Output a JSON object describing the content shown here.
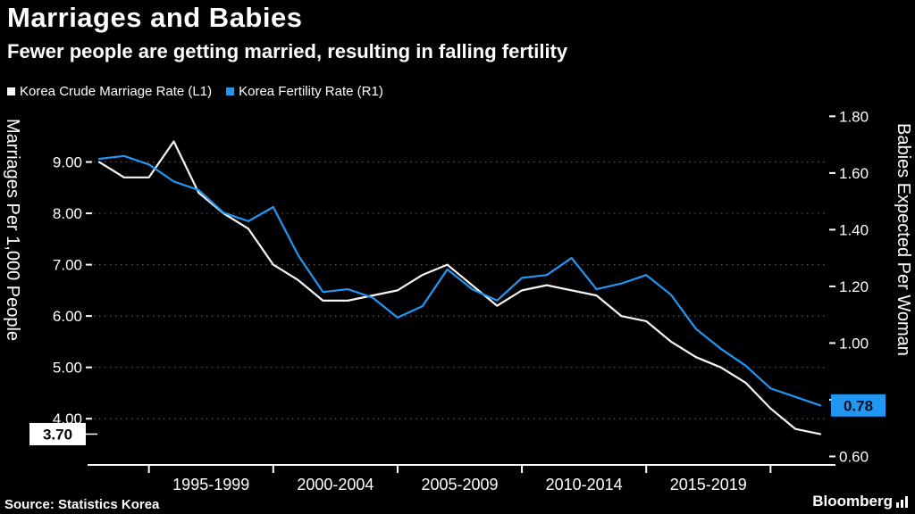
{
  "header": {
    "title": "Marriages and Babies",
    "subtitle": "Fewer people are getting married, resulting in falling fertility"
  },
  "legend": [
    {
      "label": "Korea Crude Marriage Rate (L1)",
      "color": "#f5f5f5"
    },
    {
      "label": "Korea Fertility Rate (R1)",
      "color": "#2196f3"
    }
  ],
  "footer": {
    "source": "Source:  Statistics Korea",
    "brand": "Bloomberg"
  },
  "colors": {
    "background": "#000000",
    "grid": "#5a5a5a",
    "axis": "#ffffff",
    "left_badge_bg": "#ffffff",
    "left_badge_text": "#000000",
    "right_badge_bg": "#2196f3",
    "right_badge_text": "#00101c"
  },
  "chart_data": {
    "type": "line",
    "x_years": [
      1993,
      1994,
      1995,
      1996,
      1997,
      1998,
      1999,
      2000,
      2001,
      2002,
      2003,
      2004,
      2005,
      2006,
      2007,
      2008,
      2009,
      2010,
      2011,
      2012,
      2013,
      2014,
      2015,
      2016,
      2017,
      2018,
      2019,
      2020,
      2021,
      2022
    ],
    "series": [
      {
        "name": "Korea Crude Marriage Rate (L1)",
        "axis": "left",
        "color": "#f5f5f5",
        "values": [
          9.0,
          8.7,
          8.7,
          9.4,
          8.4,
          8.0,
          7.7,
          7.0,
          6.7,
          6.3,
          6.3,
          6.4,
          6.5,
          6.8,
          7.0,
          6.6,
          6.2,
          6.5,
          6.6,
          6.5,
          6.4,
          6.0,
          5.9,
          5.5,
          5.2,
          5.0,
          4.7,
          4.2,
          3.8,
          3.7
        ]
      },
      {
        "name": "Korea Fertility Rate (R1)",
        "axis": "right",
        "color": "#2196f3",
        "values": [
          1.65,
          1.66,
          1.63,
          1.57,
          1.54,
          1.46,
          1.43,
          1.48,
          1.31,
          1.18,
          1.19,
          1.16,
          1.09,
          1.13,
          1.26,
          1.19,
          1.15,
          1.23,
          1.24,
          1.3,
          1.19,
          1.21,
          1.24,
          1.17,
          1.05,
          0.98,
          0.92,
          0.84,
          0.81,
          0.78
        ]
      }
    ],
    "left_axis": {
      "title": "Marriages Per 1,000 People",
      "ticks": [
        "4.00",
        "5.00",
        "6.00",
        "7.00",
        "8.00",
        "9.00"
      ],
      "tick_values": [
        4,
        5,
        6,
        7,
        8,
        9
      ],
      "range": [
        3.1,
        10.0
      ],
      "last_value": "3.70",
      "last_value_num": 3.7
    },
    "right_axis": {
      "title": "Babies Expected Per Woman",
      "ticks": [
        "0.60",
        "0.80",
        "1.00",
        "1.20",
        "1.40",
        "1.60",
        "1.80"
      ],
      "tick_values": [
        0.6,
        0.8,
        1.0,
        1.2,
        1.4,
        1.6,
        1.8
      ],
      "range": [
        0.57,
        1.82
      ],
      "last_value": "0.78",
      "last_value_num": 0.78
    },
    "x_axis": {
      "boundary_years": [
        1995,
        2000,
        2005,
        2010,
        2015,
        2020
      ],
      "group_labels": [
        "1995-1999",
        "2000-2004",
        "2005-2009",
        "2010-2014",
        "2015-2019"
      ]
    }
  }
}
